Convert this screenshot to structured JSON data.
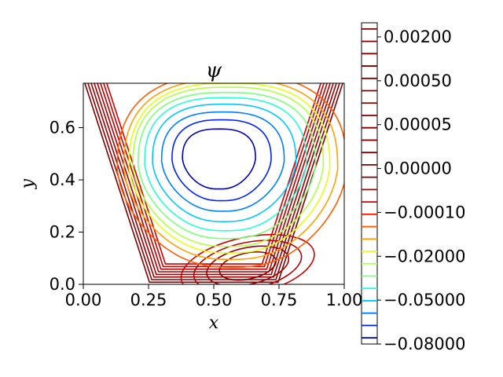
{
  "chart_data": {
    "type": "contour",
    "title": "ψ",
    "xlabel": "x",
    "ylabel": "y",
    "xlim": [
      0.0,
      1.0
    ],
    "ylim": [
      0.0,
      0.77
    ],
    "x_ticks": [
      0.0,
      0.25,
      0.5,
      0.75,
      1.0
    ],
    "x_tick_labels": [
      "0.00",
      "0.25",
      "0.50",
      "0.75",
      "1.00"
    ],
    "y_ticks": [
      0.0,
      0.2,
      0.4,
      0.6
    ],
    "y_tick_labels": [
      "0.0",
      "0.2",
      "0.4",
      "0.6"
    ],
    "colormap": "jet",
    "colorbar_tick_labels": [
      "0.00200",
      "0.00050",
      "0.00005",
      "0.00000",
      "−0.00010",
      "−0.02000",
      "−0.05000",
      "−0.08000"
    ],
    "colorbar_levels": [
      {
        "color": "#800000"
      },
      {
        "color": "#800000"
      },
      {
        "color": "#800000"
      },
      {
        "color": "#800000"
      },
      {
        "color": "#800000"
      },
      {
        "color": "#800000"
      },
      {
        "color": "#800000"
      },
      {
        "color": "#800000"
      },
      {
        "color": "#800000"
      },
      {
        "color": "#800000"
      },
      {
        "color": "#800000"
      },
      {
        "color": "#800000"
      },
      {
        "color": "#820000"
      },
      {
        "color": "#ab0000"
      },
      {
        "color": "#d40000"
      },
      {
        "color": "#ff1a00"
      },
      {
        "color": "#ff5e00"
      },
      {
        "color": "#ffa200"
      },
      {
        "color": "#e3ff14"
      },
      {
        "color": "#b0ff47"
      },
      {
        "color": "#7dff7a"
      },
      {
        "color": "#26ffd1"
      },
      {
        "color": "#00c8ff"
      },
      {
        "color": "#0080ff"
      },
      {
        "color": "#0020ff"
      },
      {
        "color": "#0000b0"
      }
    ],
    "cavity_shape": "trapezoid",
    "cavity_top": {
      "x": [
        0.0,
        1.0
      ],
      "y": 0.77
    },
    "cavity_bottom": {
      "x": [
        0.25,
        0.75
      ],
      "y": 0.0
    },
    "primary_vortex_center": [
      0.52,
      0.48
    ],
    "secondary_vortex_center": [
      0.65,
      0.06
    ],
    "contours": [
      {
        "color": "#0000b0",
        "cx": 0.52,
        "cy": 0.48,
        "rx": 0.14,
        "ry": 0.115
      },
      {
        "color": "#0020ff",
        "cx": 0.53,
        "cy": 0.475,
        "rx": 0.19,
        "ry": 0.155
      },
      {
        "color": "#0080ff",
        "cx": 0.535,
        "cy": 0.47,
        "rx": 0.235,
        "ry": 0.19
      },
      {
        "color": "#00c8ff",
        "cx": 0.54,
        "cy": 0.465,
        "rx": 0.275,
        "ry": 0.225
      },
      {
        "color": "#26ffd1",
        "cx": 0.545,
        "cy": 0.46,
        "rx": 0.31,
        "ry": 0.255
      },
      {
        "color": "#7dff7a",
        "cx": 0.55,
        "cy": 0.455,
        "rx": 0.34,
        "ry": 0.28
      },
      {
        "color": "#b0ff47",
        "cx": 0.555,
        "cy": 0.45,
        "rx": 0.365,
        "ry": 0.305
      },
      {
        "color": "#e3ff14",
        "cx": 0.56,
        "cy": 0.445,
        "rx": 0.385,
        "ry": 0.325
      },
      {
        "color": "#ffa200",
        "cx": 0.565,
        "cy": 0.44,
        "rx": 0.41,
        "ry": 0.345
      },
      {
        "color": "#ff5e00",
        "cx": 0.57,
        "cy": 0.435,
        "rx": 0.44,
        "ry": 0.37
      }
    ]
  }
}
